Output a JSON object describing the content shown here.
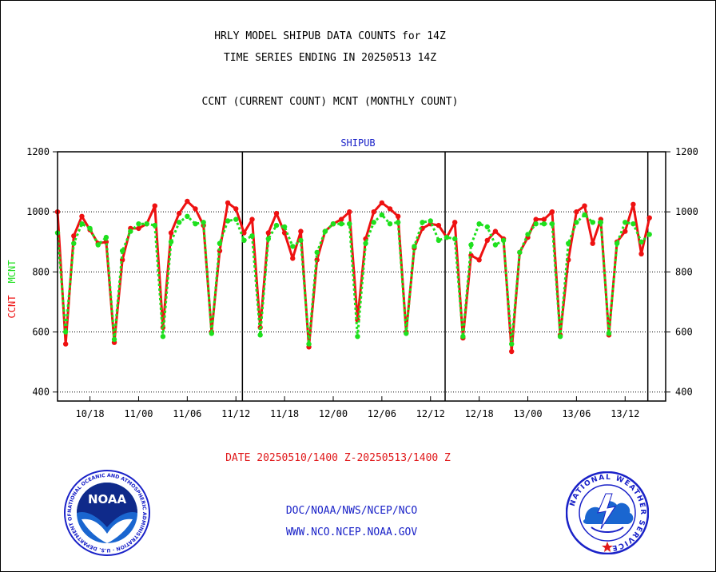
{
  "header": {
    "title_line1": "HRLY MODEL SHIPUB DATA COUNTS for 14Z",
    "title_line2": "TIME SERIES ENDING IN 20250513 14Z",
    "title_line3": "CCNT (CURRENT COUNT) MCNT (MONTHLY COUNT)"
  },
  "footer": {
    "date_range": "DATE 20250510/1400 Z-20250513/1400 Z",
    "org": "DOC/NOAA/NWS/NCEP/NCO",
    "url": "WWW.NCO.NCEP.NOAA.GOV",
    "noaa_logo_text": "NOAA",
    "noaa_seal_ring_text": "NATIONAL OCEANIC AND ATMOSPHERIC ADMINISTRATION · U.S. DEPARTMENT OF COMMERCE",
    "nws_seal_ring_text": "NATIONAL WEATHER SERVICE"
  },
  "chart_data": {
    "type": "line",
    "panel_label": "SHIPUB",
    "ylabel_primary": "CCNT",
    "ylabel_secondary": "MCNT",
    "ylim": [
      370,
      1200
    ],
    "yticks": [
      400,
      600,
      800,
      1000,
      1200
    ],
    "xlim": [
      0,
      75
    ],
    "xticks": [
      {
        "x": 4,
        "label": "10/18"
      },
      {
        "x": 10,
        "label": "11/00"
      },
      {
        "x": 16,
        "label": "11/06"
      },
      {
        "x": 22,
        "label": "11/12"
      },
      {
        "x": 28,
        "label": "11/18"
      },
      {
        "x": 34,
        "label": "12/00"
      },
      {
        "x": 40,
        "label": "12/06"
      },
      {
        "x": 46,
        "label": "12/12"
      },
      {
        "x": 52,
        "label": "12/18"
      },
      {
        "x": 58,
        "label": "13/00"
      },
      {
        "x": 64,
        "label": "13/06"
      },
      {
        "x": 70,
        "label": "13/12"
      }
    ],
    "day_boundaries": [
      22.8,
      47.8,
      72.8
    ],
    "grid": "dotted horizontal at 600, 800, 1000",
    "series": [
      {
        "name": "CCNT",
        "color": "#ee1111",
        "style": "solid",
        "values": [
          1000,
          560,
          920,
          985,
          940,
          895,
          900,
          565,
          840,
          945,
          945,
          960,
          1020,
          615,
          930,
          995,
          1035,
          1010,
          955,
          600,
          870,
          1030,
          1010,
          930,
          975,
          615,
          930,
          995,
          930,
          845,
          935,
          550,
          840,
          935,
          960,
          975,
          1000,
          640,
          910,
          1000,
          1030,
          1010,
          985,
          600,
          880,
          945,
          960,
          955,
          915,
          965,
          580,
          855,
          840,
          905,
          935,
          910,
          535,
          865,
          915,
          975,
          975,
          1000,
          590,
          840,
          1000,
          1020,
          895,
          975,
          590,
          900,
          935,
          1025,
          860,
          980
        ]
      },
      {
        "name": "MCNT",
        "color": "#1ee01e",
        "style": "dotted",
        "values": [
          930,
          600,
          895,
          960,
          945,
          890,
          915,
          575,
          870,
          935,
          960,
          960,
          955,
          585,
          900,
          965,
          985,
          960,
          965,
          595,
          895,
          970,
          975,
          905,
          920,
          590,
          910,
          955,
          950,
          885,
          905,
          560,
          865,
          935,
          960,
          960,
          960,
          585,
          895,
          965,
          990,
          960,
          965,
          595,
          885,
          965,
          970,
          905,
          915,
          910,
          585,
          890,
          960,
          950,
          890,
          905,
          560,
          865,
          925,
          960,
          960,
          960,
          585,
          895,
          965,
          990,
          965,
          965,
          595,
          895,
          965,
          960,
          900,
          925
        ]
      }
    ]
  }
}
